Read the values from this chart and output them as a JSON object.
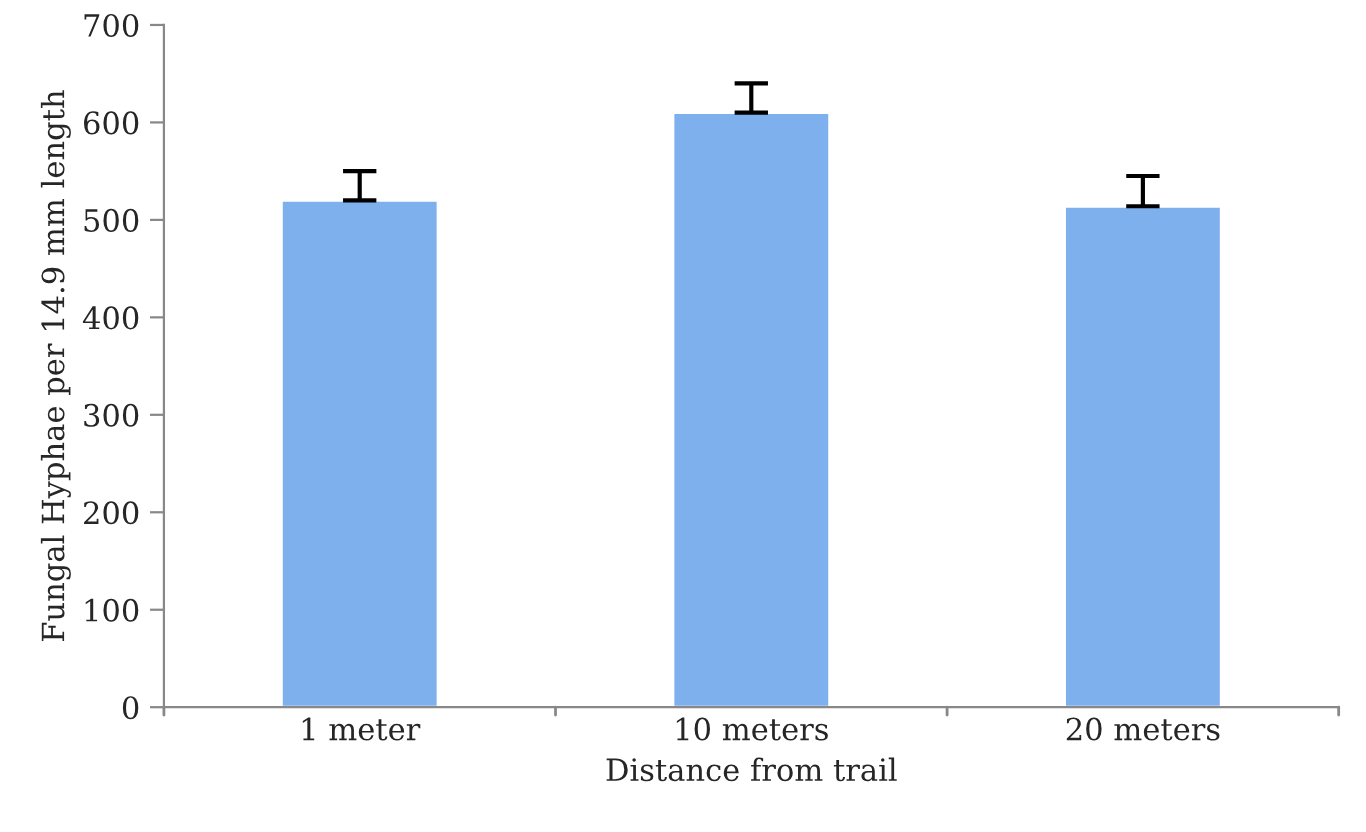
{
  "chart_data": {
    "type": "bar",
    "xlabel": "Distance from trail",
    "ylabel": "Fungal Hyphae per 14.9 mm length",
    "categories": [
      "1 meter",
      "10 meters",
      "20 meters"
    ],
    "values": [
      520,
      610,
      514
    ],
    "errors": [
      [
        520,
        550
      ],
      [
        610,
        640
      ],
      [
        514,
        545
      ]
    ],
    "color": "#7fb0ee",
    "ylim": [
      0,
      700
    ],
    "yticks": [
      0,
      100,
      200,
      300,
      400,
      500,
      600,
      700
    ],
    "grid": false
  }
}
